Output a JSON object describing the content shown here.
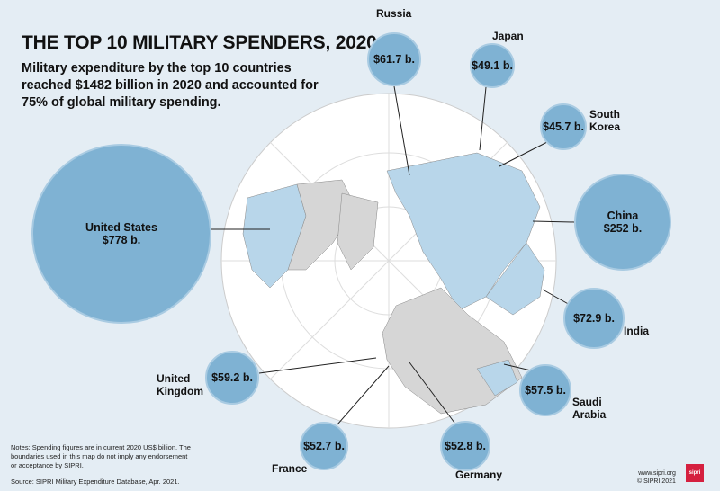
{
  "header": {
    "title": "THE TOP 10 MILITARY SPENDERS, 2020",
    "subtitle": "Military expenditure by the top 10 countries reached $1482 billion in 2020 and accounted for 75% of global military spending."
  },
  "colors": {
    "bubble": "#7fb2d3",
    "highlight_country": "#b8d6ea",
    "other_land": "#d6d6d6",
    "ocean": "#ffffff",
    "background": "#e4edf4",
    "logo": "#d5203f"
  },
  "countries": [
    {
      "name": "United States",
      "value": "$778 b."
    },
    {
      "name": "China",
      "value": "$252 b."
    },
    {
      "name": "India",
      "value": "$72.9 b."
    },
    {
      "name": "Russia",
      "value": "$61.7 b."
    },
    {
      "name": "United Kingdom",
      "value": "$59.2 b."
    },
    {
      "name": "Saudi Arabia",
      "value": "$57.5 b."
    },
    {
      "name": "Germany",
      "value": "$52.8 b."
    },
    {
      "name": "France",
      "value": "$52.7 b."
    },
    {
      "name": "Japan",
      "value": "$49.1 b."
    },
    {
      "name": "South Korea",
      "value": "$45.7 b."
    }
  ],
  "footer": {
    "notes": "Notes: Spending figures are in current 2020 US$ billion. The boundaries used in this map do not imply any endorsement or acceptance by SIPRI.",
    "source": "Source: SIPRI Military Expenditure Database, Apr. 2021.",
    "website": "www.sipri.org",
    "copyright": "© SIPRI 2021",
    "logo": "sipri"
  }
}
